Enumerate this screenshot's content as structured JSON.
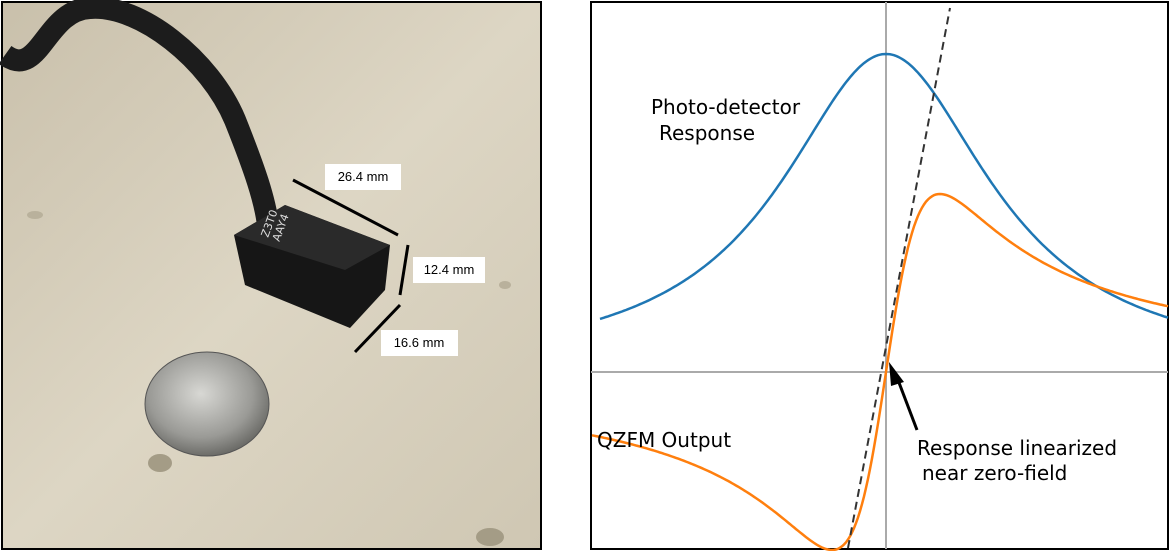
{
  "photo": {
    "chip_label": [
      "Z3T0",
      "AAY4"
    ],
    "dimensions": [
      "26.4 mm",
      "12.4 mm",
      "16.6 mm"
    ]
  },
  "plot": {
    "detector_label": [
      "Photo-detector",
      "Response"
    ],
    "output_label": "QZFM Output",
    "annotation": [
      "Response linearized",
      "near zero-field"
    ]
  }
}
